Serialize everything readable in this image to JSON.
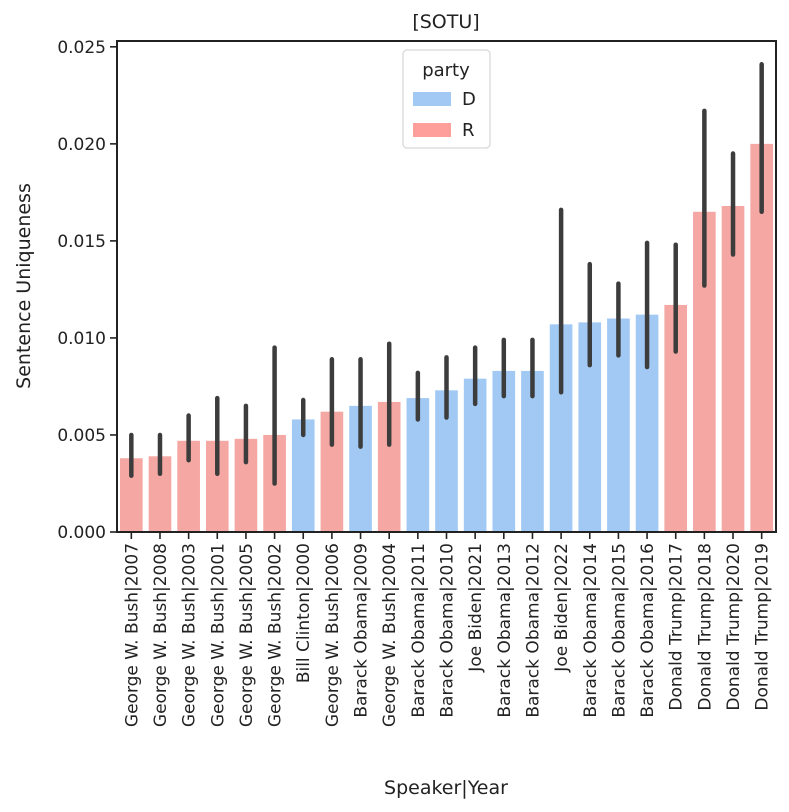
{
  "chart_data": {
    "type": "bar",
    "title": "[SOTU]",
    "xlabel": "Speaker|Year",
    "ylabel": "Sentence Uniqueness",
    "ylim": [
      0,
      0.0253
    ],
    "yticks": [
      0.0,
      0.005,
      0.01,
      0.015,
      0.02,
      0.025
    ],
    "ytick_labels": [
      "0.000",
      "0.005",
      "0.010",
      "0.015",
      "0.020",
      "0.025"
    ],
    "grid": false,
    "legend": {
      "title": "party",
      "placement": "top-center",
      "entries": [
        {
          "label": "D",
          "color": "#a1c9f4"
        },
        {
          "label": "R",
          "color": "#ff9f9b"
        }
      ]
    },
    "colors": {
      "D": "#a1c9f4",
      "R": "#f4a7a3",
      "errorbar": "#3c3c3c"
    },
    "categories": [
      "George W. Bush|2007",
      "George W. Bush|2008",
      "George W. Bush|2003",
      "George W. Bush|2001",
      "George W. Bush|2005",
      "George W. Bush|2002",
      "Bill Clinton|2000",
      "George W. Bush|2006",
      "Barack Obama|2009",
      "George W. Bush|2004",
      "Barack Obama|2011",
      "Barack Obama|2010",
      "Joe Biden|2021",
      "Barack Obama|2013",
      "Barack Obama|2012",
      "Joe Biden|2022",
      "Barack Obama|2014",
      "Barack Obama|2015",
      "Barack Obama|2016",
      "Donald Trump|2017",
      "Donald Trump|2018",
      "Donald Trump|2020",
      "Donald Trump|2019"
    ],
    "party": [
      "R",
      "R",
      "R",
      "R",
      "R",
      "R",
      "D",
      "R",
      "D",
      "R",
      "D",
      "D",
      "D",
      "D",
      "D",
      "D",
      "D",
      "D",
      "D",
      "R",
      "R",
      "R",
      "R"
    ],
    "values": [
      0.0038,
      0.0039,
      0.0047,
      0.0047,
      0.0048,
      0.005,
      0.0058,
      0.0062,
      0.0065,
      0.0067,
      0.0069,
      0.0073,
      0.0079,
      0.0083,
      0.0083,
      0.0107,
      0.0108,
      0.011,
      0.0112,
      0.0117,
      0.0165,
      0.0168,
      0.02
    ],
    "ci_low": [
      0.0029,
      0.003,
      0.0037,
      0.003,
      0.0036,
      0.0025,
      0.005,
      0.0045,
      0.0044,
      0.0045,
      0.0058,
      0.0059,
      0.0066,
      0.007,
      0.007,
      0.0072,
      0.0086,
      0.0091,
      0.0085,
      0.0093,
      0.0127,
      0.0143,
      0.0165
    ],
    "ci_high": [
      0.005,
      0.005,
      0.006,
      0.0069,
      0.0065,
      0.0095,
      0.0068,
      0.0089,
      0.0089,
      0.0097,
      0.0082,
      0.009,
      0.0095,
      0.0099,
      0.0099,
      0.0166,
      0.0138,
      0.0128,
      0.0149,
      0.0148,
      0.0217,
      0.0195,
      0.0241
    ]
  }
}
